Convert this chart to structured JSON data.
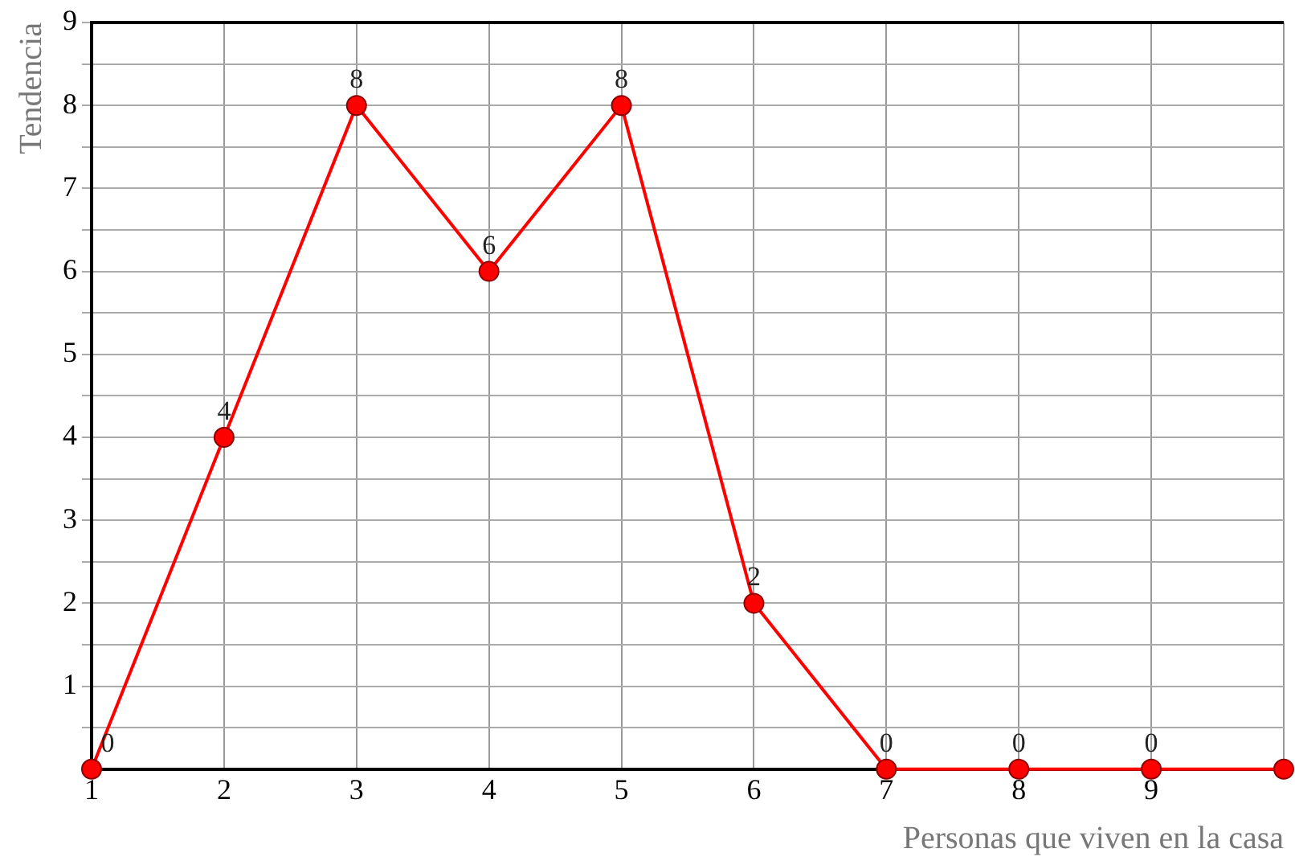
{
  "chart_data": {
    "type": "line",
    "xlabel": "Personas que viven en la casa",
    "ylabel": "Tendencia",
    "x": [
      1,
      2,
      3,
      4,
      5,
      6,
      7,
      8,
      9,
      10
    ],
    "series": [
      {
        "color": "#ff0000",
        "values": [
          0,
          4,
          8,
          6,
          8,
          2,
          0,
          0,
          0,
          0
        ],
        "value_labels": [
          "0",
          "4",
          "8",
          "6",
          "8",
          "2",
          "0",
          "0",
          "0",
          null
        ]
      }
    ],
    "xlim": [
      1,
      10
    ],
    "xticks": [
      1,
      2,
      3,
      4,
      5,
      6,
      7,
      8,
      9,
      {
        "value": 10,
        "label": null
      }
    ],
    "ylim": [
      0,
      9
    ],
    "yticks": [
      {
        "value": 0,
        "label": null
      },
      {
        "value": 0.5,
        "label": null
      },
      1,
      {
        "value": 1.5,
        "label": null
      },
      2,
      {
        "value": 2.5,
        "label": null
      },
      3,
      {
        "value": 3.5,
        "label": null
      },
      4,
      {
        "value": 4.5,
        "label": null
      },
      5,
      {
        "value": 5.5,
        "label": null
      },
      6,
      {
        "value": 6.5,
        "label": null
      },
      7,
      {
        "value": 7.5,
        "label": null
      },
      8,
      {
        "value": 8.5,
        "label": null
      },
      9
    ],
    "grid": true,
    "legend": false,
    "marker": "circle",
    "line_style": "solid"
  }
}
